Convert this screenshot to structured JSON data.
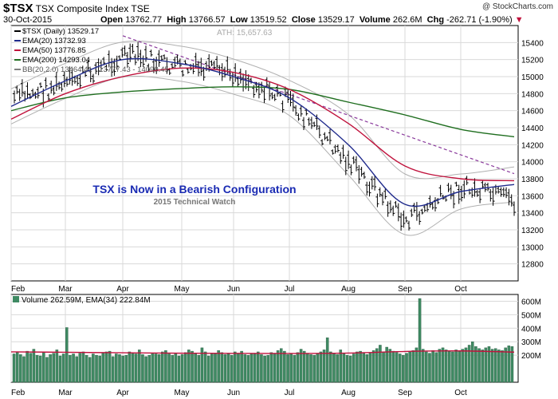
{
  "header": {
    "symbol": "$TSX",
    "name": "TSX Composite Index",
    "exchange": "TSE",
    "date": "30-Oct-2015",
    "open_label": "Open",
    "open": "13762.77",
    "high_label": "High",
    "high": "13766.57",
    "low_label": "Low",
    "low": "13519.52",
    "close_label": "Close",
    "close": "13529.17",
    "volume_label": "Volume",
    "volume": "262.6M",
    "chg_label": "Chg",
    "chg": "-262.71 (-1.90%)",
    "watermark": "@ StockCharts.com"
  },
  "legend": [
    {
      "text": "$TSX (Daily) 13529.17",
      "color": "#000000"
    },
    {
      "text": "EMA(20) 13732.93",
      "color": "#1f2a8c"
    },
    {
      "text": "EMA(50) 13776.85",
      "color": "#c0123c"
    },
    {
      "text": "EMA(200) 14293.04",
      "color": "#1f6e1f"
    },
    {
      "text": "BB(20,2.0) 13464.41 - 13777.43 - 14090.45",
      "color": "#808080"
    }
  ],
  "ath_label": "ATH: 15,657.63",
  "annotation": {
    "title": "TSX is Now in a Bearish Configuration",
    "subtitle": "2015 Technical Watch"
  },
  "volume_legend": "Volume 262.59M, EMA(34) 222.84M",
  "colors": {
    "price_bars": "#000000",
    "ema20": "#1f2a8c",
    "ema50": "#c0123c",
    "ema200": "#1f6e1f",
    "bollinger": "#b0b0b0",
    "trendline": "#8a3a9c",
    "volume_bars": "#3f8a63",
    "volume_ema": "#c0123c",
    "annotation_title": "#1a2bb3",
    "grid": "#d9d9d9"
  },
  "chart_data": [
    {
      "type": "line",
      "title": "",
      "x_ticks": [
        "Feb",
        "Mar",
        "Apr",
        "May",
        "Jun",
        "Jul",
        "Aug",
        "Sep",
        "Oct"
      ],
      "y_ticks": [
        12800,
        13000,
        13200,
        13400,
        13600,
        13800,
        14000,
        14200,
        14400,
        14600,
        14800,
        15000,
        15200,
        15400
      ],
      "ylim": [
        12600,
        15600
      ],
      "grid": true,
      "trendline": {
        "start": [
          "Apr",
          15480
        ],
        "end": [
          "Oct 30",
          13860
        ]
      },
      "series": [
        {
          "name": "$TSX (Daily)",
          "x": [
            "Feb",
            "Mar",
            "Apr",
            "May",
            "Jun",
            "Jul",
            "Aug",
            "Sep",
            "Oct",
            "Oct 30"
          ],
          "y": [
            14750,
            14900,
            15250,
            15100,
            15050,
            14700,
            14000,
            13300,
            13700,
            13529
          ]
        },
        {
          "name": "EMA(20)",
          "x": [
            "Feb",
            "Mar",
            "Apr",
            "May",
            "Jun",
            "Jul",
            "Aug",
            "Sep",
            "Oct",
            "Oct 30"
          ],
          "y": [
            14650,
            14950,
            15200,
            15150,
            15000,
            14750,
            14200,
            13500,
            13650,
            13733
          ]
        },
        {
          "name": "EMA(50)",
          "x": [
            "Feb",
            "Mar",
            "Apr",
            "May",
            "Jun",
            "Jul",
            "Aug",
            "Sep",
            "Oct",
            "Oct 30"
          ],
          "y": [
            14500,
            14800,
            15000,
            15100,
            15050,
            14850,
            14450,
            13950,
            13800,
            13777
          ]
        },
        {
          "name": "EMA(200)",
          "x": [
            "Feb",
            "Mar",
            "Apr",
            "May",
            "Jun",
            "Jul",
            "Aug",
            "Sep",
            "Oct",
            "Oct 30"
          ],
          "y": [
            14600,
            14750,
            14820,
            14860,
            14880,
            14850,
            14700,
            14550,
            14380,
            14293
          ]
        }
      ]
    },
    {
      "type": "bar",
      "title": "",
      "x_ticks": [
        "Feb",
        "Mar",
        "Apr",
        "May",
        "Jun",
        "Jul",
        "Aug",
        "Sep",
        "Oct"
      ],
      "y_ticks": [
        "200M",
        "300M",
        "400M",
        "500M",
        "600M"
      ],
      "ylim": [
        0,
        650
      ],
      "y_unit": "M",
      "series": [
        {
          "name": "Volume",
          "values_M": [
            210,
            225,
            205,
            190,
            230,
            215,
            245,
            200,
            195,
            220,
            185,
            205,
            215,
            240,
            195,
            210,
            405,
            200,
            210,
            190,
            215,
            225,
            200,
            185,
            210,
            200,
            195,
            215,
            225,
            230,
            190,
            210,
            205,
            195,
            200,
            225,
            215,
            210,
            240,
            205,
            190,
            200,
            215,
            210,
            205,
            225,
            235,
            210,
            200,
            215,
            195,
            205,
            220,
            240,
            230,
            215,
            200,
            255,
            225,
            195,
            210,
            215,
            235,
            220,
            205,
            210,
            200,
            225,
            215,
            230,
            205,
            200,
            210,
            215,
            225,
            205,
            195,
            200,
            220,
            215,
            235,
            250,
            230,
            205,
            210,
            200,
            220,
            245,
            230,
            215,
            205,
            200,
            215,
            225,
            240,
            330,
            225,
            215,
            205,
            240,
            215,
            200,
            195,
            210,
            225,
            230,
            215,
            205,
            215,
            235,
            250,
            275,
            225,
            260,
            245,
            230,
            220,
            210,
            200,
            215,
            225,
            235,
            255,
            620,
            245,
            225,
            215,
            235,
            220,
            245,
            255,
            240,
            230,
            225,
            240,
            235,
            245,
            255,
            275,
            300,
            265,
            250,
            240,
            255,
            265,
            245,
            250,
            240,
            235,
            255,
            270,
            265
          ]
        },
        {
          "name": "EMA(34)",
          "x": [
            "Feb",
            "Mar",
            "Apr",
            "May",
            "Jun",
            "Jul",
            "Aug",
            "Sep",
            "Oct",
            "Oct 30"
          ],
          "values_M": [
            225,
            222,
            218,
            215,
            214,
            213,
            216,
            228,
            232,
            223
          ]
        }
      ]
    }
  ]
}
